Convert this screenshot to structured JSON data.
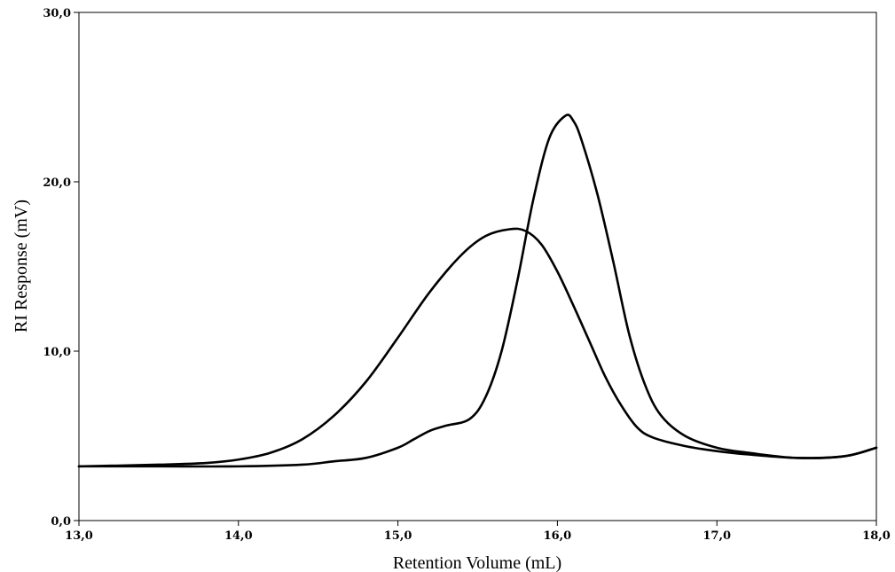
{
  "chart_data": {
    "type": "line",
    "title": "",
    "xlabel": "Retention Volume (mL)",
    "ylabel": "RI Response (mV)",
    "xlim": [
      13.0,
      18.0
    ],
    "ylim": [
      0.0,
      30.0
    ],
    "xticks": [
      13.0,
      14.0,
      15.0,
      16.0,
      17.0,
      18.0
    ],
    "yticks": [
      0.0,
      10.0,
      20.0,
      30.0
    ],
    "xtick_labels": [
      "13,0",
      "14,0",
      "15,0",
      "16,0",
      "17,0",
      "18,0"
    ],
    "ytick_labels": [
      "0,0",
      "10,0",
      "20,0",
      "30,0"
    ],
    "grid": false,
    "legend": "none",
    "series": [
      {
        "x": [
          13.0,
          13.5,
          13.8,
          14.0,
          14.2,
          14.4,
          14.6,
          14.8,
          15.0,
          15.2,
          15.4,
          15.55,
          15.7,
          15.8,
          15.9,
          16.0,
          16.1,
          16.2,
          16.3,
          16.4,
          16.5,
          16.6,
          16.8,
          17.0,
          17.2,
          17.5,
          17.8,
          18.0
        ],
        "y": [
          3.2,
          3.3,
          3.4,
          3.6,
          4.0,
          4.8,
          6.2,
          8.2,
          10.8,
          13.5,
          15.7,
          16.8,
          17.2,
          17.1,
          16.3,
          14.7,
          12.7,
          10.6,
          8.5,
          6.8,
          5.5,
          4.9,
          4.4,
          4.1,
          3.9,
          3.7,
          3.8,
          4.3
        ]
      },
      {
        "x": [
          13.0,
          13.5,
          14.0,
          14.4,
          14.6,
          14.8,
          15.0,
          15.1,
          15.2,
          15.3,
          15.45,
          15.55,
          15.65,
          15.75,
          15.85,
          15.95,
          16.05,
          16.1,
          16.15,
          16.25,
          16.35,
          16.45,
          16.55,
          16.65,
          16.8,
          17.0,
          17.2,
          17.5,
          17.8,
          18.0
        ],
        "y": [
          3.2,
          3.2,
          3.2,
          3.3,
          3.5,
          3.7,
          4.3,
          4.8,
          5.3,
          5.6,
          6.0,
          7.3,
          10.0,
          14.2,
          19.0,
          22.6,
          23.9,
          23.6,
          22.5,
          19.3,
          15.3,
          11.0,
          8.0,
          6.2,
          5.0,
          4.3,
          4.0,
          3.7,
          3.8,
          4.3
        ]
      }
    ]
  }
}
